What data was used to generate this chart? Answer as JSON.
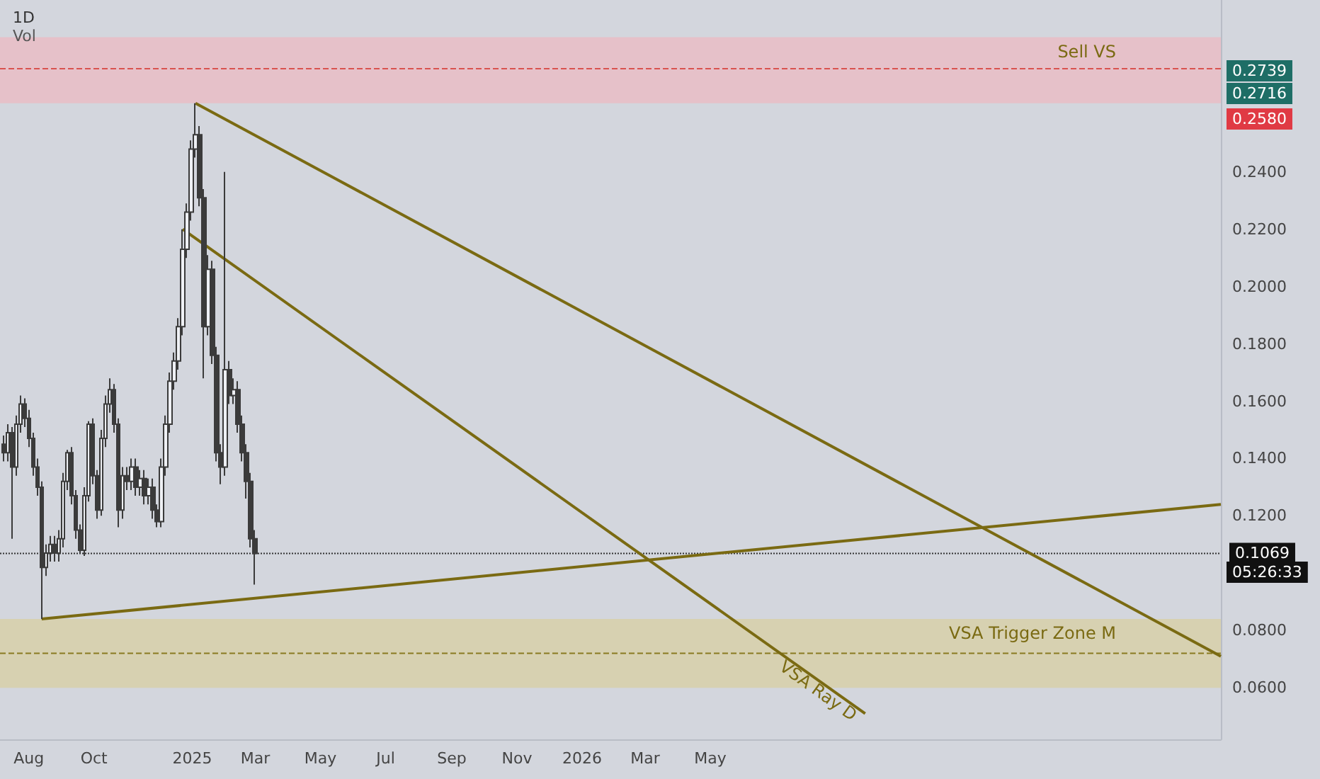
{
  "chart_data": {
    "type": "candlestick",
    "title": "1D",
    "subtitle": "Vol",
    "series": [
      {
        "color": "#3b3b3b",
        "x": [
          "2024-07-08",
          "2024-07-12",
          "2024-07-16",
          "2024-07-20",
          "2024-07-24",
          "2024-07-28",
          "2024-08-01",
          "2024-08-05",
          "2024-08-09",
          "2024-08-13",
          "2024-08-17",
          "2024-08-21",
          "2024-08-25",
          "2024-08-29",
          "2024-09-02",
          "2024-09-06",
          "2024-09-10",
          "2024-09-14",
          "2024-09-18",
          "2024-09-22",
          "2024-09-26",
          "2024-09-30",
          "2024-10-04",
          "2024-10-08",
          "2024-10-12",
          "2024-10-16",
          "2024-10-20",
          "2024-10-24",
          "2024-10-28",
          "2024-11-01",
          "2024-11-05",
          "2024-11-09",
          "2024-11-13",
          "2024-11-17",
          "2024-11-21",
          "2024-11-25",
          "2024-11-29",
          "2024-12-03",
          "2024-12-07",
          "2024-12-11",
          "2024-12-15",
          "2024-12-19",
          "2024-12-23",
          "2024-12-27",
          "2024-12-31",
          "2025-01-04",
          "2025-01-08",
          "2025-01-12",
          "2025-01-16",
          "2025-01-20",
          "2025-01-24",
          "2025-01-28",
          "2025-02-01",
          "2025-02-05",
          "2025-02-09",
          "2025-02-13",
          "2025-02-17",
          "2025-02-21",
          "2025-02-25",
          "2025-03-01"
        ],
        "ohlc": [
          [
            0.145,
            0.148,
            0.139,
            0.142
          ],
          [
            0.142,
            0.152,
            0.139,
            0.149
          ],
          [
            0.149,
            0.151,
            0.112,
            0.137
          ],
          [
            0.137,
            0.155,
            0.134,
            0.152
          ],
          [
            0.152,
            0.162,
            0.149,
            0.159
          ],
          [
            0.159,
            0.161,
            0.151,
            0.154
          ],
          [
            0.154,
            0.157,
            0.144,
            0.147
          ],
          [
            0.147,
            0.149,
            0.134,
            0.137
          ],
          [
            0.137,
            0.14,
            0.127,
            0.13
          ],
          [
            0.13,
            0.132,
            0.084,
            0.102
          ],
          [
            0.102,
            0.11,
            0.099,
            0.107
          ],
          [
            0.107,
            0.113,
            0.104,
            0.11
          ],
          [
            0.11,
            0.113,
            0.104,
            0.107
          ],
          [
            0.107,
            0.115,
            0.104,
            0.112
          ],
          [
            0.112,
            0.135,
            0.109,
            0.132
          ],
          [
            0.132,
            0.143,
            0.129,
            0.142
          ],
          [
            0.142,
            0.144,
            0.124,
            0.127
          ],
          [
            0.127,
            0.129,
            0.112,
            0.115
          ],
          [
            0.115,
            0.117,
            0.107,
            0.108
          ],
          [
            0.108,
            0.13,
            0.106,
            0.127
          ],
          [
            0.127,
            0.153,
            0.125,
            0.152
          ],
          [
            0.152,
            0.154,
            0.131,
            0.134
          ],
          [
            0.134,
            0.136,
            0.119,
            0.122
          ],
          [
            0.122,
            0.15,
            0.12,
            0.147
          ],
          [
            0.147,
            0.162,
            0.144,
            0.159
          ],
          [
            0.159,
            0.168,
            0.156,
            0.164
          ],
          [
            0.164,
            0.166,
            0.149,
            0.152
          ],
          [
            0.152,
            0.154,
            0.116,
            0.122
          ],
          [
            0.122,
            0.137,
            0.119,
            0.134
          ],
          [
            0.134,
            0.137,
            0.129,
            0.132
          ],
          [
            0.132,
            0.14,
            0.129,
            0.137
          ],
          [
            0.137,
            0.14,
            0.127,
            0.13
          ],
          [
            0.13,
            0.136,
            0.127,
            0.133
          ],
          [
            0.133,
            0.136,
            0.124,
            0.127
          ],
          [
            0.127,
            0.133,
            0.124,
            0.13
          ],
          [
            0.13,
            0.133,
            0.119,
            0.122
          ],
          [
            0.122,
            0.124,
            0.116,
            0.118
          ],
          [
            0.118,
            0.14,
            0.116,
            0.137
          ],
          [
            0.137,
            0.155,
            0.134,
            0.152
          ],
          [
            0.152,
            0.17,
            0.149,
            0.167
          ],
          [
            0.167,
            0.177,
            0.164,
            0.174
          ],
          [
            0.174,
            0.189,
            0.171,
            0.186
          ],
          [
            0.186,
            0.22,
            0.183,
            0.213
          ],
          [
            0.213,
            0.229,
            0.21,
            0.226
          ],
          [
            0.226,
            0.251,
            0.223,
            0.248
          ],
          [
            0.248,
            0.264,
            0.245,
            0.253
          ],
          [
            0.253,
            0.256,
            0.228,
            0.231
          ],
          [
            0.231,
            0.234,
            0.168,
            0.186
          ],
          [
            0.186,
            0.211,
            0.183,
            0.206
          ],
          [
            0.206,
            0.209,
            0.173,
            0.176
          ],
          [
            0.176,
            0.179,
            0.139,
            0.142
          ],
          [
            0.142,
            0.145,
            0.131,
            0.137
          ],
          [
            0.137,
            0.24,
            0.134,
            0.171
          ],
          [
            0.171,
            0.174,
            0.159,
            0.162
          ],
          [
            0.162,
            0.168,
            0.159,
            0.164
          ],
          [
            0.164,
            0.167,
            0.149,
            0.152
          ],
          [
            0.152,
            0.155,
            0.139,
            0.142
          ],
          [
            0.142,
            0.145,
            0.126,
            0.132
          ],
          [
            0.132,
            0.135,
            0.109,
            0.112
          ],
          [
            0.112,
            0.115,
            0.096,
            0.1069
          ]
        ]
      },
      {
        "type": "line",
        "color": "#7a6a12",
        "x": [
          "2025-01-04",
          "2027-08-22"
        ],
        "values": [
          0.264,
          0.071
        ]
      },
      {
        "type": "line",
        "color": "#7a6a12",
        "x": [
          "2024-12-23",
          "2026-09-23"
        ],
        "values": [
          0.22,
          0.051
        ]
      },
      {
        "type": "line",
        "color": "#7a6a12",
        "x": [
          "2024-08-13",
          "2027-08-22"
        ],
        "values": [
          0.084,
          0.124
        ]
      }
    ],
    "xlim": [
      "2024-07-05",
      "2027-08-22"
    ],
    "ylim": [
      0.042,
      0.3
    ],
    "xticks": [
      {
        "value": "2024-08-01",
        "label": "Aug"
      },
      {
        "value": "2024-10-01",
        "label": "Oct"
      },
      {
        "value": "2025-01-01",
        "label": "2025"
      },
      {
        "value": "2025-03-01",
        "label": "Mar"
      },
      {
        "value": "2025-05-01",
        "label": "May"
      },
      {
        "value": "2025-07-01",
        "label": "Jul"
      },
      {
        "value": "2025-09-01",
        "label": "Sep"
      },
      {
        "value": "2025-11-01",
        "label": "Nov"
      },
      {
        "value": "2026-01-01",
        "label": "2026"
      },
      {
        "value": "2026-03-01",
        "label": "Mar"
      },
      {
        "value": "2026-05-01",
        "label": "May"
      }
    ],
    "yticks": [
      {
        "value": 0.06,
        "label": "0.0600"
      },
      {
        "value": 0.08,
        "label": "0.0800"
      },
      {
        "value": 0.12,
        "label": "0.1200"
      },
      {
        "value": 0.14,
        "label": "0.1400"
      },
      {
        "value": 0.16,
        "label": "0.1600"
      },
      {
        "value": 0.18,
        "label": "0.1800"
      },
      {
        "value": 0.2,
        "label": "0.2000"
      },
      {
        "value": 0.22,
        "label": "0.2200"
      },
      {
        "value": 0.24,
        "label": "0.2400"
      }
    ],
    "bands": [
      {
        "axis": "y",
        "from": 0.264,
        "to": 0.287,
        "color": "#ebbcc4",
        "label": "Sell VS"
      },
      {
        "axis": "y",
        "from": 0.06,
        "to": 0.084,
        "color": "#d8cfa6",
        "label": "VSA Trigger Zone M"
      }
    ],
    "ref_lines": [
      {
        "axis": "y",
        "value": 0.276,
        "color": "#d9534f",
        "line_style": "dashed",
        "label": null
      },
      {
        "axis": "y",
        "value": 0.072,
        "color": "#8a7a20",
        "line_style": "dashed",
        "label": null
      },
      {
        "axis": "y",
        "value": 0.1069,
        "color": "#333333",
        "line_style": "dotted",
        "label": "0.1069"
      }
    ],
    "annotations": [
      "0.2739",
      "0.2716",
      "0.2580",
      "05:26:33",
      {
        "text": "VSA Ray D",
        "x": "2026-08-10",
        "y": 0.059
      }
    ],
    "grid": false,
    "marker": "none",
    "line_style": "solid"
  }
}
